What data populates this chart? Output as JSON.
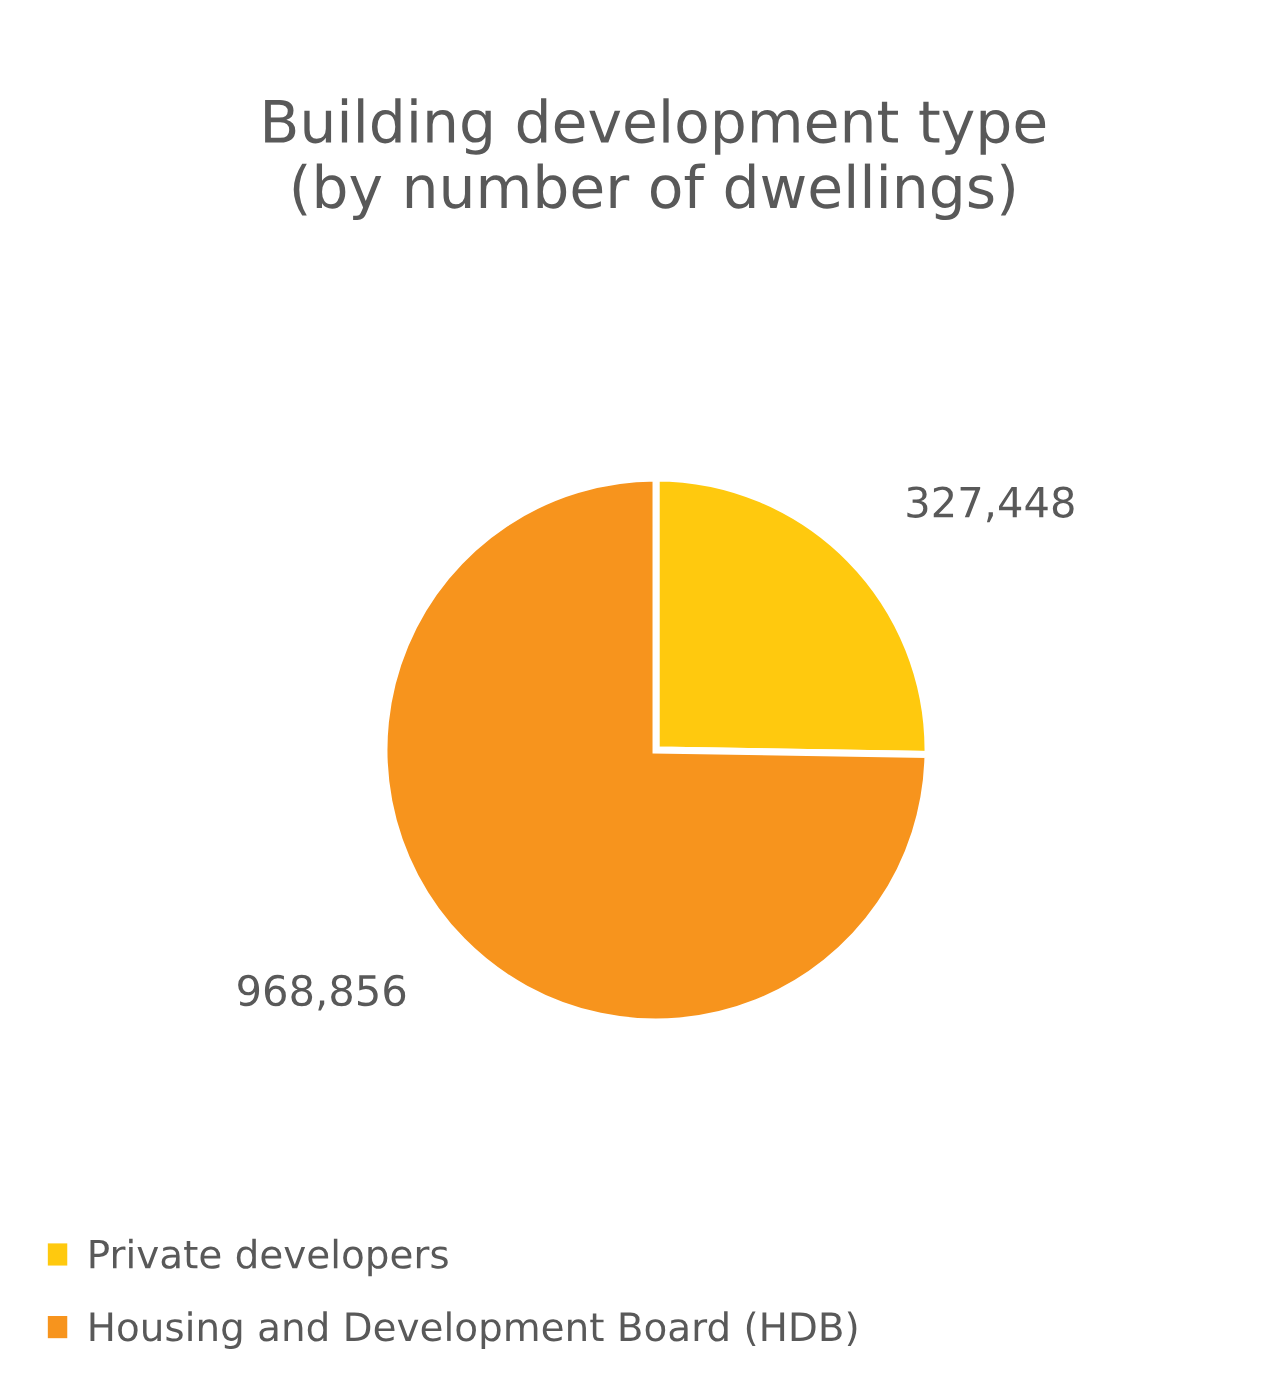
{
  "chart_data": {
    "type": "pie",
    "title": "Building development type (by number of dwellings)",
    "categories": [
      "Private developers",
      "Housing and Development Board (HDB)"
    ],
    "values": [
      327448,
      968856
    ],
    "colors": [
      "#ffc90e",
      "#f7941d"
    ],
    "value_labels": [
      "327,448",
      "968,856"
    ],
    "legend": "bottom"
  }
}
